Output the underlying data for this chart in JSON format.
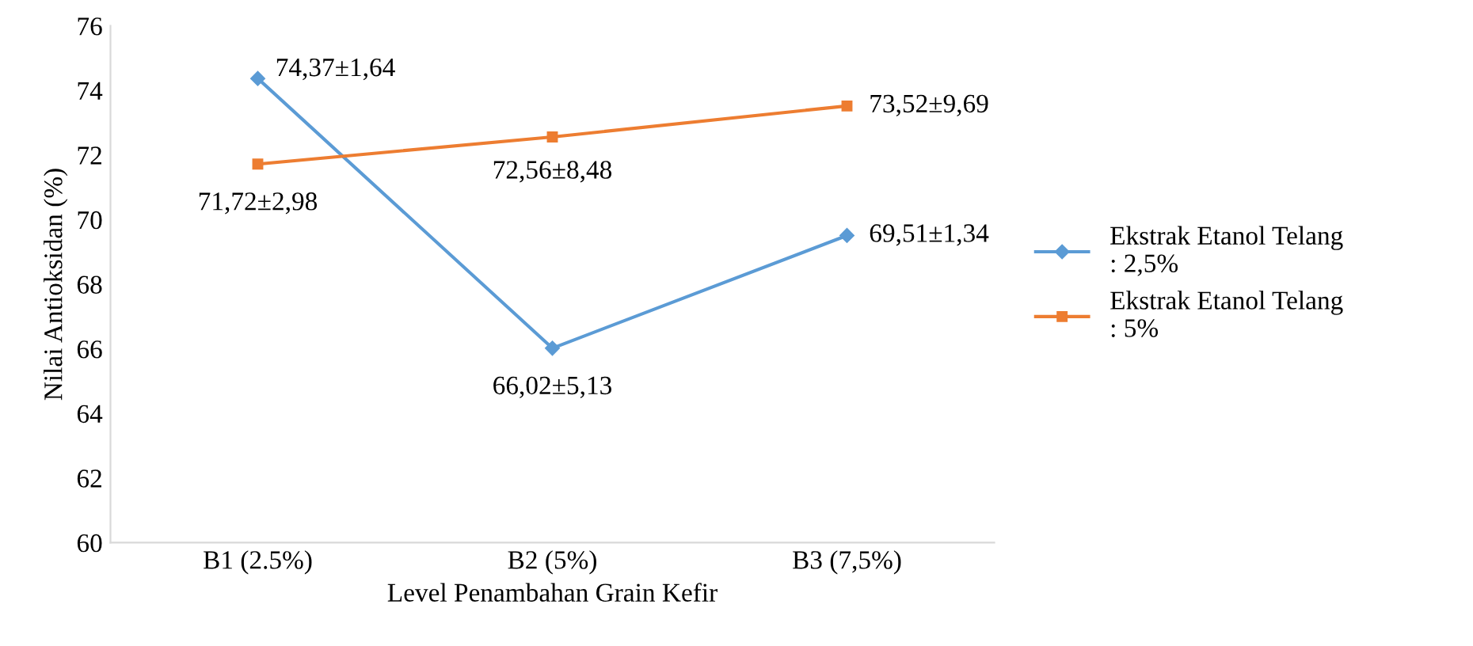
{
  "chart_data": {
    "type": "line",
    "xlabel": "Level Penambahan Grain Kefir",
    "ylabel": "Nilai Antioksidan (%)",
    "categories": [
      "B1 (2.5%)",
      "B2 (5%)",
      "B3 (7,5%)"
    ],
    "series": [
      {
        "name": "Ekstrak Etanol Telang\n: 2,5%",
        "color": "#5b9bd5",
        "marker": "diamond",
        "values": [
          74.37,
          66.02,
          69.51
        ],
        "value_labels": [
          "74,37±1,64",
          "66,02±5,13",
          "69,51±1,34"
        ]
      },
      {
        "name": "Ekstrak Etanol Telang\n: 5%",
        "color": "#ed7d31",
        "marker": "square",
        "values": [
          71.72,
          72.56,
          73.52
        ],
        "value_labels": [
          "71,72±2,98",
          "72,56±8,48",
          "73,52±9,69"
        ]
      }
    ],
    "ylim": [
      60,
      76
    ],
    "yticks": [
      60,
      62,
      64,
      66,
      68,
      70,
      72,
      74,
      76
    ],
    "grid": false,
    "legend": "right"
  }
}
